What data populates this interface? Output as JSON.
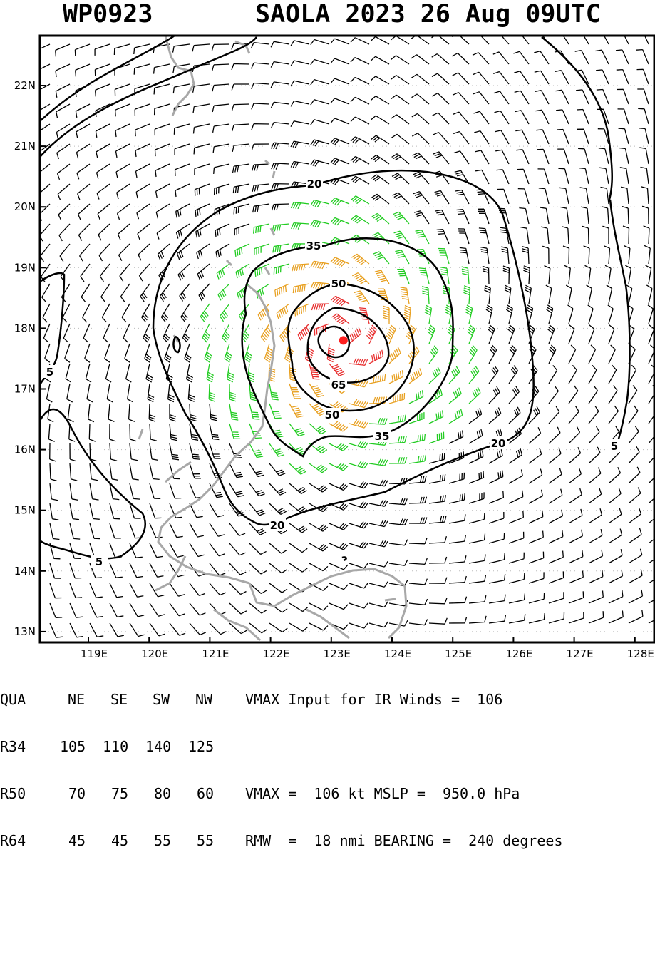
{
  "title": {
    "storm_id": "WP0923",
    "storm_info": "SAOLA 2023 26 Aug 09UTC"
  },
  "map": {
    "lat_labels": [
      "22N",
      "21N",
      "20N",
      "19N",
      "18N",
      "17N",
      "16N",
      "15N",
      "14N",
      "13N"
    ],
    "lon_labels": [
      "119E",
      "120E",
      "121E",
      "122E",
      "123E",
      "124E",
      "125E",
      "126E",
      "127E",
      "128E"
    ],
    "contour_labels": [
      "20",
      "35",
      "50",
      "65",
      "50",
      "35",
      "20",
      "20",
      "5",
      "5",
      "5"
    ],
    "colors": {
      "contour": "#000000",
      "coast": "#a8a8a8",
      "barb_low": "#000000",
      "barb_34": "#22cc22",
      "barb_50": "#e8a020",
      "barb_64": "#e83030",
      "center": "#ff2020"
    },
    "center": {
      "lat": 17.8,
      "lon": 123.2
    }
  },
  "table": {
    "header": [
      "QUA",
      "NE",
      "SE",
      "SW",
      "NW"
    ],
    "rows": [
      [
        "R34",
        "105",
        "110",
        "140",
        "125"
      ],
      [
        "R50",
        "70",
        "75",
        "80",
        "60"
      ],
      [
        "R64",
        "45",
        "45",
        "55",
        "55"
      ]
    ],
    "info_lines": [
      "VMAX Input for IR Winds =  106",
      "",
      "VMAX =  106 kt MSLP =  950.0 hPa",
      "RMW  =  18 nmi BEARING =  240 degrees"
    ]
  }
}
